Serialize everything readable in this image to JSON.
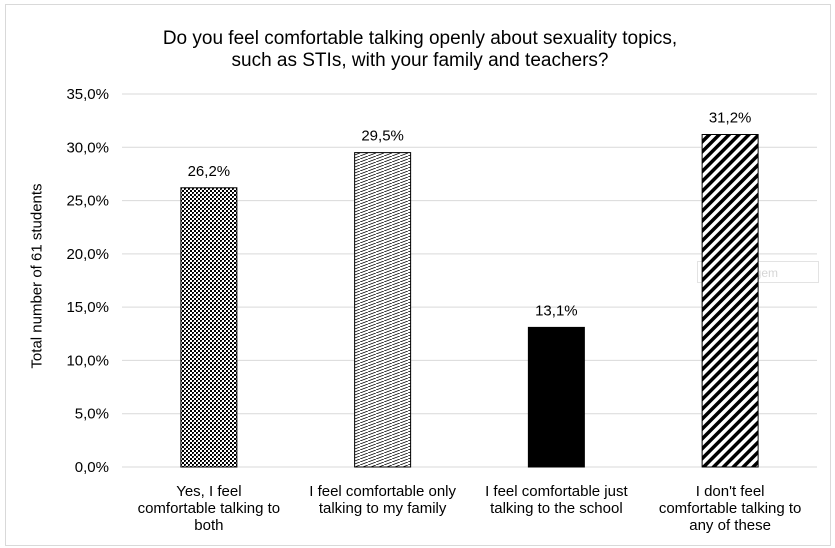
{
  "chart_data": {
    "type": "bar",
    "title": "Do you feel comfortable talking openly about sexuality topics, such as STIs, with your family and teachers?",
    "ylabel": "Total number of 61 students",
    "xlabel": "",
    "categories": [
      "Yes, I feel comfortable talking to both",
      "I feel comfortable only talking to my family",
      "I feel comfortable just talking to the school",
      "I don't feel comfortable talking to any of these"
    ],
    "category_lines": [
      [
        "Yes, I feel",
        "comfortable talking to",
        "both"
      ],
      [
        "I feel comfortable only",
        "talking to my family"
      ],
      [
        "I feel comfortable just",
        "talking to the school"
      ],
      [
        "I don't feel",
        "comfortable talking to",
        "any of these"
      ]
    ],
    "values": [
      26.2,
      29.5,
      13.1,
      31.2
    ],
    "data_labels": [
      "26,2%",
      "29,5%",
      "13,1%",
      "31,2%"
    ],
    "ylim": [
      0,
      35
    ],
    "yticks": [
      0,
      5,
      10,
      15,
      20,
      25,
      30,
      35
    ],
    "ytick_labels": [
      "0,0%",
      "5,0%",
      "10,0%",
      "15,0%",
      "20,0%",
      "25,0%",
      "30,0%",
      "35,0%"
    ],
    "bar_fills": [
      "crosshatch",
      "fine-diagonal",
      "solid",
      "wide-diagonal"
    ],
    "grid": true,
    "gridline_color": "#d9d9d9",
    "bar_color": "#000000"
  },
  "watermark_text": "otagem"
}
